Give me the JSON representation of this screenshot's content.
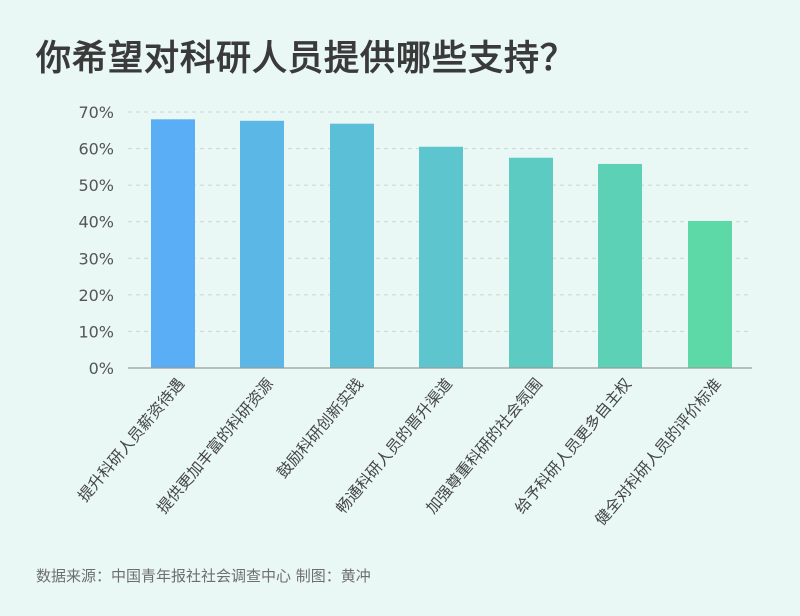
{
  "title": "你希望对科研人员提供哪些支持？",
  "source_note": "数据来源：中国青年报社社会调查中心 制图：黄冲",
  "chart_data": {
    "type": "bar",
    "title": "你希望对科研人员提供哪些支持？",
    "xlabel": "",
    "ylabel": "",
    "categories": [
      "提升科研人员薪资待遇",
      "提供更加丰富的科研资源",
      "鼓励科研创新实践",
      "畅通科研人员的晋升渠道",
      "加强尊重科研的社会氛围",
      "给予科研人员更多自主权",
      "健全对科研人员的评价标准"
    ],
    "values": [
      68.0,
      67.6,
      66.8,
      60.5,
      57.5,
      55.8,
      40.2
    ],
    "ylim": [
      0,
      70
    ],
    "yticks": [
      0,
      10,
      20,
      30,
      40,
      50,
      60,
      70
    ],
    "ytick_labels": [
      "0%",
      "10%",
      "20%",
      "30%",
      "40%",
      "50%",
      "60%",
      "70%"
    ],
    "grid": true,
    "colors": [
      "#5aaef5",
      "#5ab7e6",
      "#5bbfd8",
      "#5cc5cd",
      "#5ccbc2",
      "#5cd1b5",
      "#5cd9a7"
    ]
  }
}
